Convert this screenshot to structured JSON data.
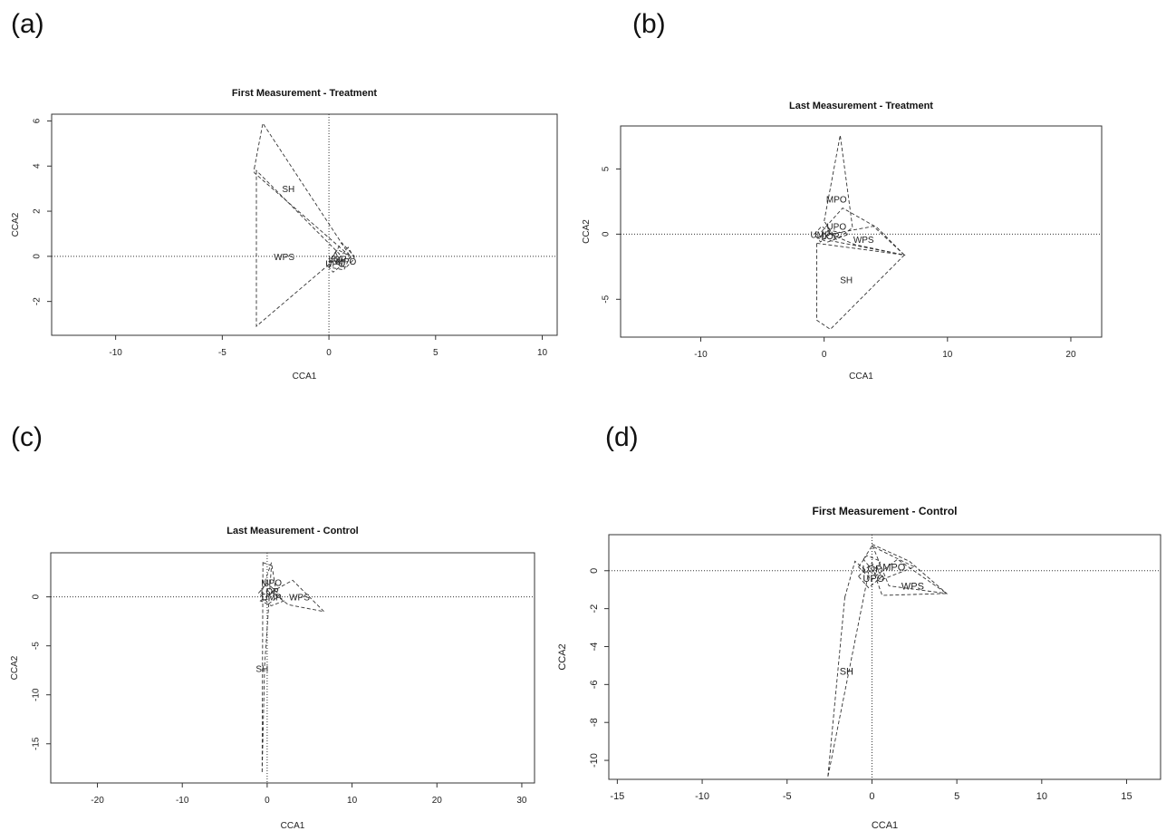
{
  "panel_letters": [
    "(a)",
    "(b)",
    "(c)",
    "(d)"
  ],
  "chart_data": [
    {
      "type": "scatter",
      "panel": "(a)",
      "title": "First Measurement - Treatment",
      "xlabel": "CCA1",
      "ylabel": "CCA2",
      "xlim": [
        -13,
        10.7
      ],
      "ylim": [
        -3.5,
        6.3
      ],
      "xticks": [
        -10,
        -5,
        0,
        5,
        10
      ],
      "yticks": [
        -2,
        0,
        2,
        4,
        6
      ],
      "rotate_y_ticks": true,
      "grid": false,
      "reference_lines": [
        0,
        0
      ],
      "hulls": [
        {
          "label": "SH",
          "label_at": [
            -1.9,
            3.0
          ],
          "points": [
            [
              -3.5,
              3.9
            ],
            [
              -3.1,
              5.9
            ],
            [
              1.0,
              0.0
            ],
            [
              -3.5,
              3.7
            ]
          ]
        },
        {
          "label": "WPS",
          "label_at": [
            -2.1,
            0.0
          ],
          "points": [
            [
              -3.4,
              3.8
            ],
            [
              -3.4,
              -3.1
            ],
            [
              0.2,
              -0.2
            ],
            [
              0.5,
              0.1
            ]
          ]
        },
        {
          "label": "LOP",
          "label_at": [
            0.4,
            -0.1
          ],
          "points": [
            [
              0.0,
              -0.3
            ],
            [
              0.4,
              0.3
            ],
            [
              1.0,
              0.0
            ],
            [
              0.7,
              -0.6
            ],
            [
              0.1,
              -0.5
            ]
          ]
        },
        {
          "label": "MPO",
          "label_at": [
            0.8,
            -0.2
          ],
          "points": [
            [
              0.3,
              -0.3
            ],
            [
              0.9,
              0.4
            ],
            [
              1.2,
              -0.1
            ],
            [
              0.8,
              -0.5
            ]
          ]
        },
        {
          "label": "UPO",
          "label_at": [
            0.3,
            -0.3
          ],
          "points": [
            [
              0.0,
              -0.5
            ],
            [
              0.3,
              0.2
            ],
            [
              0.6,
              -0.4
            ],
            [
              0.2,
              -0.7
            ]
          ]
        },
        {
          "label": "",
          "label_at": [
            0,
            0
          ],
          "points": [
            [
              0.1,
              -0.1
            ],
            [
              0.6,
              0.6
            ],
            [
              1.2,
              0.0
            ],
            [
              0.7,
              -0.2
            ]
          ]
        }
      ]
    },
    {
      "type": "scatter",
      "panel": "(b)",
      "title": "Last Measurement - Treatment",
      "xlabel": "CCA1",
      "ylabel": "CCA2",
      "xlim": [
        -16.5,
        22.5
      ],
      "ylim": [
        -7.9,
        8.3
      ],
      "xticks": [
        -10,
        0,
        10,
        20
      ],
      "yticks": [
        -5,
        0,
        5
      ],
      "rotate_y_ticks": true,
      "grid": false,
      "reference_lines": [
        null,
        0
      ],
      "hulls": [
        {
          "label": "MPO",
          "label_at": [
            1.0,
            2.7
          ],
          "points": [
            [
              0.0,
              1.0
            ],
            [
              1.3,
              7.6
            ],
            [
              2.3,
              0.5
            ],
            [
              1.0,
              -0.4
            ]
          ]
        },
        {
          "label": "UPO",
          "label_at": [
            1.0,
            0.6
          ],
          "points": [
            [
              -0.2,
              0.2
            ],
            [
              1.5,
              2.0
            ],
            [
              4.3,
              0.5
            ],
            [
              6.5,
              -1.6
            ],
            [
              0.5,
              -0.5
            ]
          ]
        },
        {
          "label": "WPS",
          "label_at": [
            3.2,
            -0.4
          ],
          "points": [
            [
              0.5,
              0.0
            ],
            [
              4.0,
              0.6
            ],
            [
              6.5,
              -1.6
            ],
            [
              2.5,
              -0.8
            ]
          ]
        },
        {
          "label": "SH",
          "label_at": [
            1.8,
            -3.5
          ],
          "points": [
            [
              -0.6,
              -0.7
            ],
            [
              6.5,
              -1.6
            ],
            [
              0.5,
              -7.3
            ],
            [
              -0.6,
              -6.6
            ]
          ]
        },
        {
          "label": "UMP",
          "label_at": [
            -0.3,
            0.0
          ],
          "points": [
            [
              -0.8,
              0.0
            ],
            [
              -0.2,
              0.6
            ],
            [
              0.6,
              0.1
            ],
            [
              -0.3,
              -0.6
            ]
          ]
        },
        {
          "label": "LOP",
          "label_at": [
            0.5,
            -0.1
          ],
          "points": [
            [
              -0.5,
              -0.3
            ],
            [
              0.4,
              0.3
            ],
            [
              2.0,
              0.0
            ],
            [
              0.3,
              -0.6
            ]
          ]
        }
      ]
    },
    {
      "type": "scatter",
      "panel": "(c)",
      "title": "Last Measurement - Control",
      "xlabel": "CCA1",
      "ylabel": "CCA2",
      "xlim": [
        -25.5,
        31.5
      ],
      "ylim": [
        -19.0,
        4.5
      ],
      "xticks": [
        -20,
        -10,
        0,
        10,
        20,
        30
      ],
      "yticks": [
        -15,
        -10,
        -5,
        0
      ],
      "rotate_y_ticks": true,
      "grid": false,
      "reference_lines": [
        0,
        0
      ],
      "hulls": [
        {
          "label": "SH",
          "label_at": [
            -0.6,
            -7.3
          ],
          "points": [
            [
              -0.5,
              3.5
            ],
            [
              0.5,
              3.2
            ],
            [
              -0.3,
              -7.0
            ],
            [
              -0.6,
              -18.0
            ]
          ]
        },
        {
          "label": "MPO",
          "label_at": [
            0.5,
            1.5
          ],
          "points": [
            [
              -0.3,
              1.5
            ],
            [
              0.5,
              3.5
            ],
            [
              1.0,
              0.8
            ],
            [
              0.3,
              0.2
            ]
          ]
        },
        {
          "label": "WPS",
          "label_at": [
            3.8,
            0.0
          ],
          "points": [
            [
              0.5,
              0.5
            ],
            [
              3.0,
              1.7
            ],
            [
              6.7,
              -1.5
            ],
            [
              2.5,
              -0.8
            ]
          ]
        },
        {
          "label": "LOP",
          "label_at": [
            0.3,
            0.6
          ],
          "points": [
            [
              -1.0,
              0.4
            ],
            [
              0.0,
              1.4
            ],
            [
              1.5,
              0.2
            ],
            [
              0.2,
              -0.7
            ]
          ]
        },
        {
          "label": "UMP",
          "label_at": [
            0.5,
            0.0
          ],
          "points": [
            [
              -0.8,
              -0.4
            ],
            [
              0.7,
              0.5
            ],
            [
              2.0,
              -0.4
            ],
            [
              0.5,
              -0.9
            ]
          ]
        }
      ]
    },
    {
      "type": "scatter",
      "panel": "(d)",
      "title": "First Measurement - Control",
      "xlabel": "CCA1",
      "ylabel": "CCA2",
      "xlim": [
        -15.5,
        17.0
      ],
      "ylim": [
        -11.0,
        1.9
      ],
      "xticks": [
        -15,
        -10,
        -5,
        0,
        5,
        10,
        15
      ],
      "yticks": [
        -10,
        -8,
        -6,
        -4,
        -2,
        0
      ],
      "rotate_y_ticks": true,
      "grid": false,
      "reference_lines": [
        0,
        0
      ],
      "hulls": [
        {
          "label": "SH",
          "label_at": [
            -1.5,
            -5.3
          ],
          "points": [
            [
              -1.6,
              -1.4
            ],
            [
              -1.0,
              0.5
            ],
            [
              -0.2,
              -0.1
            ],
            [
              -2.6,
              -10.9
            ]
          ]
        },
        {
          "label": "MPO",
          "label_at": [
            1.3,
            0.2
          ],
          "points": [
            [
              -0.5,
              0.6
            ],
            [
              0.0,
              1.3
            ],
            [
              2.5,
              0.2
            ],
            [
              0.5,
              -0.5
            ]
          ]
        },
        {
          "label": "LOP",
          "label_at": [
            0.0,
            0.1
          ],
          "points": [
            [
              -0.8,
              0.2
            ],
            [
              -0.3,
              0.8
            ],
            [
              0.5,
              0.5
            ],
            [
              0.0,
              -0.5
            ]
          ]
        },
        {
          "label": "UPO",
          "label_at": [
            0.1,
            -0.4
          ],
          "points": [
            [
              -0.8,
              -0.3
            ],
            [
              0.0,
              0.4
            ],
            [
              0.6,
              -0.3
            ],
            [
              -0.2,
              -0.9
            ]
          ]
        },
        {
          "label": "WPS",
          "label_at": [
            2.4,
            -0.8
          ],
          "points": [
            [
              0.2,
              -0.3
            ],
            [
              1.5,
              0.6
            ],
            [
              4.4,
              -1.2
            ],
            [
              0.6,
              -1.3
            ]
          ]
        },
        {
          "label": "",
          "label_at": [
            0,
            0
          ],
          "points": [
            [
              0.0,
              1.4
            ],
            [
              2.2,
              0.5
            ],
            [
              4.4,
              -1.2
            ],
            [
              1.0,
              -0.8
            ]
          ]
        }
      ]
    }
  ]
}
